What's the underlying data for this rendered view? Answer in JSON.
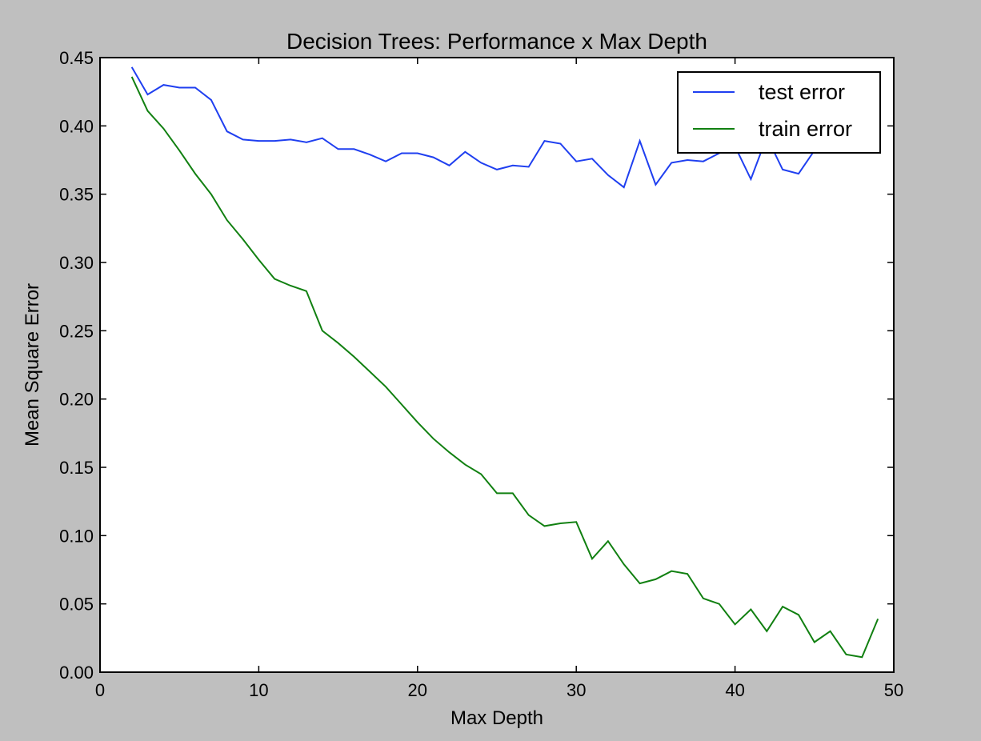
{
  "chart_data": {
    "type": "line",
    "title": "Decision Trees: Performance x Max Depth",
    "xlabel": "Max Depth",
    "ylabel": "Mean Square Error",
    "xlim": [
      0,
      50
    ],
    "ylim": [
      0.0,
      0.45
    ],
    "grid": false,
    "legend_position": "top-right",
    "x_ticks": [
      0,
      10,
      20,
      30,
      40,
      50
    ],
    "x_tick_labels": [
      "0",
      "10",
      "20",
      "30",
      "40",
      "50"
    ],
    "y_ticks": [
      0.0,
      0.05,
      0.1,
      0.15,
      0.2,
      0.25,
      0.3,
      0.35,
      0.4,
      0.45
    ],
    "y_tick_labels": [
      "0.00",
      "0.05",
      "0.10",
      "0.15",
      "0.20",
      "0.25",
      "0.30",
      "0.35",
      "0.40",
      "0.45"
    ],
    "x": [
      2,
      3,
      4,
      5,
      6,
      7,
      8,
      9,
      10,
      11,
      12,
      13,
      14,
      15,
      16,
      17,
      18,
      19,
      20,
      21,
      22,
      23,
      24,
      25,
      26,
      27,
      28,
      29,
      30,
      31,
      32,
      33,
      34,
      35,
      36,
      37,
      38,
      39,
      40,
      41,
      42,
      43,
      44,
      45,
      46,
      47,
      48,
      49
    ],
    "series": [
      {
        "name": "test error",
        "color": "#1f3ff0",
        "values": [
          0.443,
          0.423,
          0.43,
          0.428,
          0.428,
          0.419,
          0.396,
          0.39,
          0.389,
          0.389,
          0.39,
          0.388,
          0.391,
          0.383,
          0.383,
          0.379,
          0.374,
          0.38,
          0.38,
          0.377,
          0.371,
          0.381,
          0.373,
          0.368,
          0.371,
          0.37,
          0.389,
          0.387,
          0.374,
          0.376,
          0.364,
          0.355,
          0.389,
          0.357,
          0.373,
          0.375,
          0.374,
          0.38,
          0.385,
          0.361,
          0.392,
          0.368,
          0.365,
          0.382,
          0.384,
          0.39,
          0.391,
          0.395
        ]
      },
      {
        "name": "train error",
        "color": "#118011",
        "values": [
          0.436,
          0.411,
          0.398,
          0.382,
          0.365,
          0.35,
          0.331,
          0.317,
          0.302,
          0.288,
          0.283,
          0.279,
          0.25,
          0.241,
          0.231,
          0.22,
          0.209,
          0.196,
          0.183,
          0.171,
          0.161,
          0.152,
          0.145,
          0.131,
          0.131,
          0.115,
          0.107,
          0.109,
          0.11,
          0.083,
          0.096,
          0.079,
          0.065,
          0.068,
          0.074,
          0.072,
          0.054,
          0.05,
          0.035,
          0.046,
          0.03,
          0.048,
          0.042,
          0.022,
          0.03,
          0.013,
          0.011,
          0.039
        ]
      }
    ]
  }
}
